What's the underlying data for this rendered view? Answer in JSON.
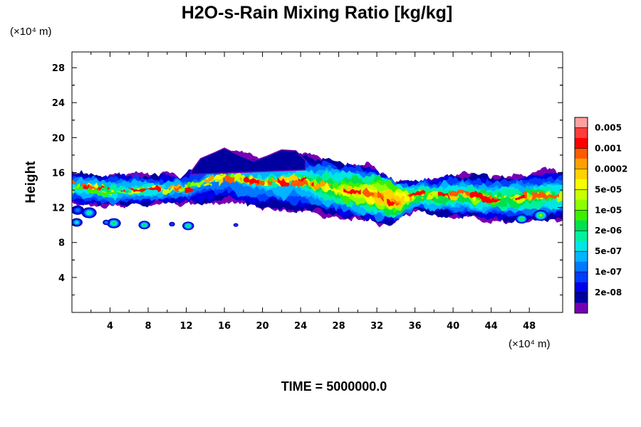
{
  "chart_data": {
    "type": "heatmap",
    "title": "H2O-s-Rain Mixing Ratio [kg/kg]",
    "ylabel": "Height",
    "xunit": "(×10⁴ m)",
    "yunit": "(×10⁴ m)",
    "footer": "TIME = 5000000.0",
    "xlim": [
      0,
      51.5
    ],
    "ylim": [
      0,
      29.8
    ],
    "xticks": [
      4,
      8,
      12,
      16,
      20,
      24,
      28,
      32,
      36,
      40,
      44,
      48
    ],
    "yticks": [
      4,
      8,
      12,
      16,
      20,
      24,
      28
    ],
    "colorbar": {
      "labels": [
        "0.005",
        "0.001",
        "0.0002",
        "5e-05",
        "1e-05",
        "2e-06",
        "5e-07",
        "1e-07",
        "2e-08"
      ],
      "colors": [
        "#ffa0a0",
        "#ff3c3c",
        "#ff0000",
        "#ff5a00",
        "#ffa000",
        "#ffd200",
        "#f5ff00",
        "#c8ff00",
        "#8cff00",
        "#3cf000",
        "#00e150",
        "#00f0a0",
        "#00e6e6",
        "#00b4ff",
        "#0078ff",
        "#003cff",
        "#0000e6",
        "#0000a0",
        "#7800b4"
      ]
    },
    "field_description_points": [
      {
        "x": 0.0,
        "bottom": 12.6,
        "top": 16.2,
        "peak_level": 7
      },
      {
        "x": 4.0,
        "bottom": 12.3,
        "top": 15.6,
        "peak_level": 8
      },
      {
        "x": 8.0,
        "bottom": 12.4,
        "top": 15.7,
        "peak_level": 7
      },
      {
        "x": 12.0,
        "bottom": 12.6,
        "top": 16.0,
        "peak_level": 6
      },
      {
        "x": 16.0,
        "bottom": 12.5,
        "top": 18.5,
        "peak_level": 5
      },
      {
        "x": 20.0,
        "bottom": 12.1,
        "top": 17.8,
        "peak_level": 7
      },
      {
        "x": 24.0,
        "bottom": 11.8,
        "top": 18.2,
        "peak_level": 8
      },
      {
        "x": 28.0,
        "bottom": 11.0,
        "top": 17.2,
        "peak_level": 10
      },
      {
        "x": 32.0,
        "bottom": 10.4,
        "top": 16.5,
        "peak_level": 14
      },
      {
        "x": 34.0,
        "bottom": 10.4,
        "top": 14.8,
        "peak_level": 16
      },
      {
        "x": 36.0,
        "bottom": 11.8,
        "top": 15.0,
        "peak_level": 10
      },
      {
        "x": 40.0,
        "bottom": 11.0,
        "top": 15.8,
        "peak_level": 9
      },
      {
        "x": 44.0,
        "bottom": 10.6,
        "top": 15.5,
        "peak_level": 9
      },
      {
        "x": 48.0,
        "bottom": 10.4,
        "top": 15.7,
        "peak_level": 9
      },
      {
        "x": 51.5,
        "bottom": 10.8,
        "top": 16.2,
        "peak_level": 8
      }
    ]
  }
}
